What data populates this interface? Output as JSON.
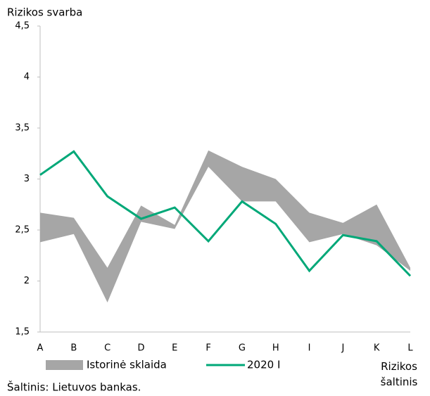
{
  "chart_data": {
    "type": "line",
    "ylabel": "Rizikos svarba",
    "xlabel": "Rizikos šaltinis",
    "source": "Šaltinis: Lietuvos bankas.",
    "categories": [
      "A",
      "B",
      "C",
      "D",
      "E",
      "F",
      "G",
      "H",
      "I",
      "J",
      "K",
      "L"
    ],
    "series": [
      {
        "name": "Istorinė sklaida",
        "type": "band",
        "color": "#a6a6a6",
        "low": [
          2.38,
          2.46,
          1.79,
          2.58,
          2.51,
          3.12,
          2.78,
          2.78,
          2.38,
          2.46,
          2.35,
          2.1
        ],
        "high": [
          2.67,
          2.62,
          2.13,
          2.74,
          2.55,
          3.28,
          3.12,
          3.0,
          2.67,
          2.57,
          2.75,
          2.13
        ]
      },
      {
        "name": "2020 I",
        "type": "line",
        "color": "#00a878",
        "values": [
          3.04,
          3.27,
          2.83,
          2.61,
          2.72,
          2.39,
          2.78,
          2.56,
          2.1,
          2.45,
          2.39,
          2.05
        ]
      }
    ],
    "ylim": [
      1.5,
      4.5
    ],
    "yticks": [
      {
        "value": 1.5,
        "label": "1,5"
      },
      2,
      {
        "value": 2.5,
        "label": "2,5"
      },
      3,
      {
        "value": 3.5,
        "label": "3,5"
      },
      4,
      {
        "value": 4.5,
        "label": "4,5"
      }
    ],
    "grid": false
  }
}
